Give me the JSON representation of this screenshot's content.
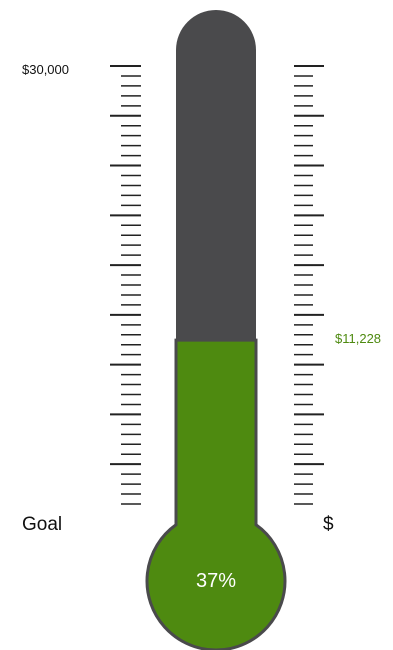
{
  "chart_data": {
    "type": "thermometer",
    "goal_value": 30000,
    "current_value": 11228,
    "percent_value": 37,
    "goal_label": "$30,000",
    "current_label": "$11,228",
    "percent_label": "37%",
    "left_axis_label": "Goal",
    "right_axis_label": "$",
    "colors": {
      "empty": "#4a4a4c",
      "fill": "#4e8a10",
      "outline": "#4a4a4c",
      "tick": "#222222",
      "current_label": "#4e8a10",
      "percent_text": "#ffffff"
    }
  }
}
